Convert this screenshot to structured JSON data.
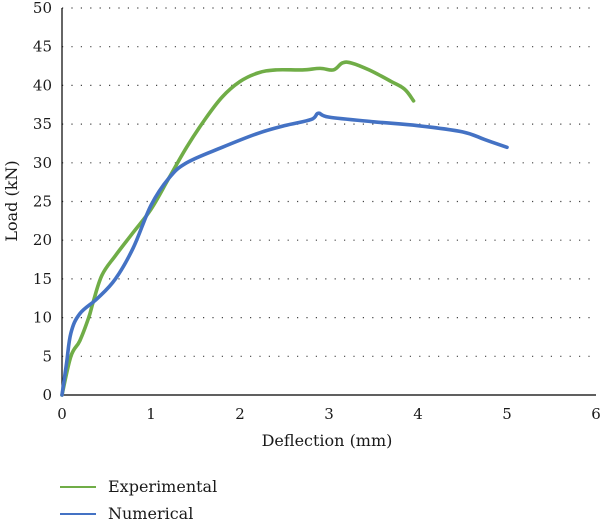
{
  "chart_data": {
    "type": "line",
    "title": "",
    "xlabel": "Deflection (mm)",
    "ylabel": "Load (kN)",
    "xlim": [
      0,
      6
    ],
    "ylim": [
      0,
      50
    ],
    "x_ticks": [
      0,
      1,
      2,
      3,
      4,
      5,
      6
    ],
    "y_ticks": [
      0,
      5,
      10,
      15,
      20,
      25,
      30,
      35,
      40,
      45,
      50
    ],
    "grid": "horizontal dotted",
    "legend_position": "bottom-left",
    "series": [
      {
        "name": "Experimental",
        "color": "#70ad47",
        "points": [
          [
            0,
            0
          ],
          [
            0.1,
            5
          ],
          [
            0.2,
            7
          ],
          [
            0.3,
            10
          ],
          [
            0.35,
            12
          ],
          [
            0.45,
            15.5
          ],
          [
            0.6,
            18
          ],
          [
            0.8,
            21
          ],
          [
            1.0,
            24
          ],
          [
            1.2,
            28
          ],
          [
            1.4,
            32
          ],
          [
            1.6,
            35.5
          ],
          [
            1.8,
            38.5
          ],
          [
            2.0,
            40.5
          ],
          [
            2.2,
            41.6
          ],
          [
            2.4,
            42
          ],
          [
            2.7,
            42
          ],
          [
            2.9,
            42.2
          ],
          [
            3.05,
            42
          ],
          [
            3.15,
            42.9
          ],
          [
            3.25,
            42.9
          ],
          [
            3.45,
            42
          ],
          [
            3.7,
            40.5
          ],
          [
            3.85,
            39.5
          ],
          [
            3.95,
            38
          ]
        ]
      },
      {
        "name": "Numerical",
        "color": "#4472c4",
        "points": [
          [
            0,
            0
          ],
          [
            0.05,
            4
          ],
          [
            0.1,
            8
          ],
          [
            0.2,
            10.5
          ],
          [
            0.4,
            12.5
          ],
          [
            0.6,
            15
          ],
          [
            0.8,
            19
          ],
          [
            1.0,
            24.5
          ],
          [
            1.2,
            28
          ],
          [
            1.4,
            30
          ],
          [
            1.8,
            32
          ],
          [
            2.2,
            33.8
          ],
          [
            2.5,
            34.8
          ],
          [
            2.8,
            35.6
          ],
          [
            2.88,
            36.4
          ],
          [
            3.0,
            35.9
          ],
          [
            3.5,
            35.3
          ],
          [
            4.0,
            34.8
          ],
          [
            4.5,
            34
          ],
          [
            4.75,
            33
          ],
          [
            5.0,
            32
          ]
        ]
      }
    ]
  }
}
